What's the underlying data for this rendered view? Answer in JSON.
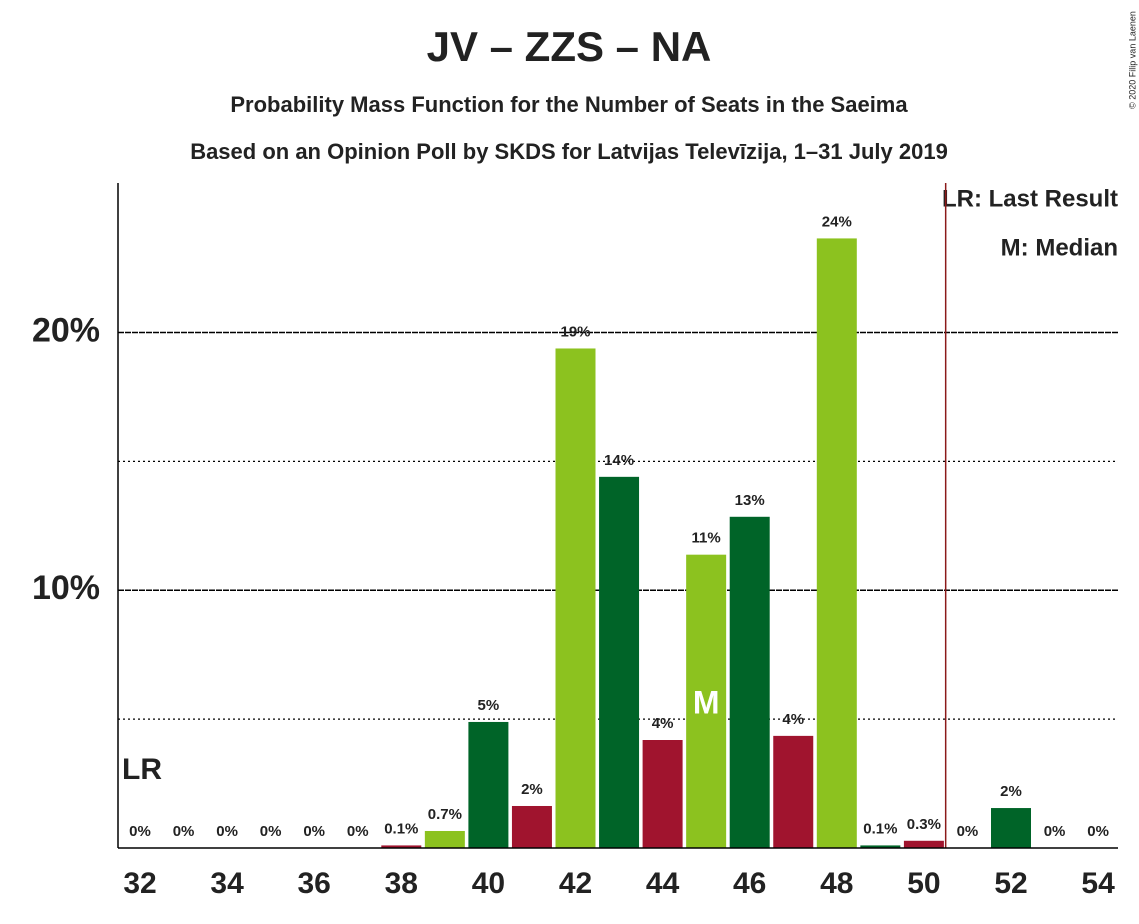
{
  "chart_data": {
    "type": "bar",
    "title": "JV – ZZS – NA",
    "subtitle": "Probability Mass Function for the Number of Seats in the Saeima",
    "subtitle2": "Based on an Opinion Poll by SKDS for Latvijas Televīzija, 1–31 July 2019",
    "categories": [
      32,
      null,
      34,
      null,
      36,
      null,
      38,
      null,
      40,
      null,
      42,
      null,
      44,
      null,
      46,
      null,
      48,
      null,
      50,
      null,
      52,
      null,
      54
    ],
    "values": [
      0,
      0,
      0,
      0,
      0,
      0,
      0.1,
      0.66,
      4.89,
      1.63,
      19.38,
      14.4,
      4.19,
      11.38,
      12.85,
      4.35,
      23.65,
      0.1,
      0.28,
      0,
      1.55,
      0,
      0
    ],
    "value_labels": [
      "0%",
      "0%",
      "0%",
      "0%",
      "0%",
      "0%",
      "0.1%",
      "0.7%",
      "5%",
      "2%",
      "19%",
      "14%",
      "4%",
      "11%",
      "13%",
      "4%",
      "24%",
      "0.1%",
      "0.3%",
      "0%",
      "2%",
      "0%",
      "0%"
    ],
    "colors": [
      "#a0142e",
      "#8cc21f",
      "#006428"
    ],
    "ylim": [
      0,
      25.8
    ],
    "yticks": [
      {
        "value": 10,
        "label": "10%"
      },
      {
        "value": 20,
        "label": "20%"
      }
    ],
    "minor_yticks": [
      5,
      15
    ],
    "grid": true,
    "last_result": {
      "label": "LR",
      "x": 50.5
    },
    "median": {
      "label": "M",
      "seat": 45
    },
    "legend": [
      "LR: Last Result",
      "M: Median"
    ],
    "copyright": "© 2020 Filip van Laenen"
  }
}
